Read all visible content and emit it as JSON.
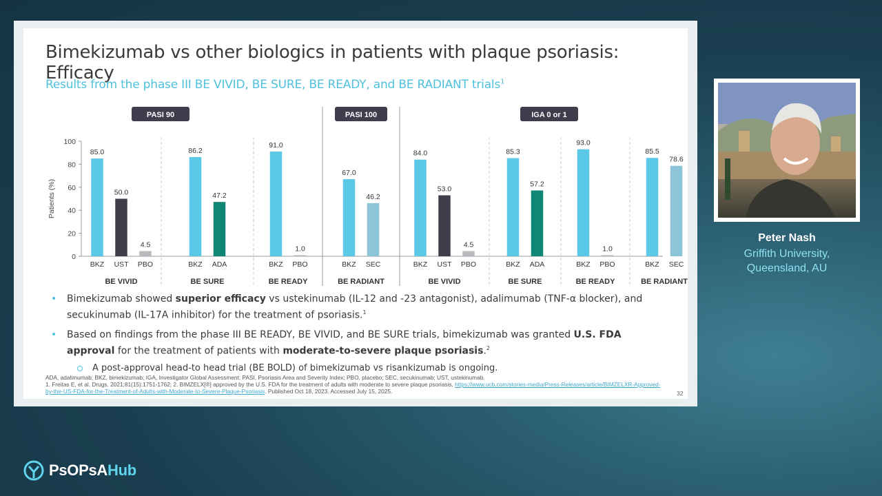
{
  "slide": {
    "title": "Bimekizumab vs other biologics in patients with plaque psoriasis: Efficacy",
    "subtitle": "Results from the phase III BE VIVID, BE SURE, BE READY, and BE RADIANT trials",
    "subtitle_ref": "1",
    "page_number": "32"
  },
  "chart_data": {
    "type": "bar",
    "ylabel": "Patients (%)",
    "ylim": [
      0,
      100
    ],
    "yticks": [
      0,
      20,
      40,
      60,
      80,
      100
    ],
    "colors": {
      "BKZ": "#5bc8e8",
      "UST": "#3e3e4a",
      "PBO": "#b9b9c0",
      "ADA": "#0f8774",
      "SEC": "#8ec4d8"
    },
    "panels": [
      {
        "label": "PASI 90",
        "groups": [
          {
            "label": "BE VIVID",
            "bars": [
              {
                "name": "BKZ",
                "value": 85.0,
                "label": "85.0"
              },
              {
                "name": "UST",
                "value": 50.0,
                "label": "50.0"
              },
              {
                "name": "PBO",
                "value": 4.5,
                "label": "4.5"
              }
            ]
          },
          {
            "label": "BE SURE",
            "bars": [
              {
                "name": "BKZ",
                "value": 86.2,
                "label": "86.2"
              },
              {
                "name": "ADA",
                "value": 47.2,
                "label": "47.2"
              }
            ]
          },
          {
            "label": "BE READY",
            "bars": [
              {
                "name": "BKZ",
                "value": 91.0,
                "label": "91.0"
              },
              {
                "name": "PBO",
                "value": 1.0,
                "label": "1.0"
              }
            ]
          }
        ]
      },
      {
        "label": "PASI 100",
        "groups": [
          {
            "label": "BE RADIANT",
            "bars": [
              {
                "name": "BKZ",
                "value": 67.0,
                "label": "67.0"
              },
              {
                "name": "SEC",
                "value": 46.2,
                "label": "46.2"
              }
            ]
          }
        ]
      },
      {
        "label": "IGA 0 or 1",
        "groups": [
          {
            "label": "BE VIVID",
            "bars": [
              {
                "name": "BKZ",
                "value": 84.0,
                "label": "84.0"
              },
              {
                "name": "UST",
                "value": 53.0,
                "label": "53.0"
              },
              {
                "name": "PBO",
                "value": 4.5,
                "label": "4.5"
              }
            ]
          },
          {
            "label": "BE SURE",
            "bars": [
              {
                "name": "BKZ",
                "value": 85.3,
                "label": "85.3"
              },
              {
                "name": "ADA",
                "value": 57.2,
                "label": "57.2"
              }
            ]
          },
          {
            "label": "BE READY",
            "bars": [
              {
                "name": "BKZ",
                "value": 93.0,
                "label": "93.0"
              },
              {
                "name": "PBO",
                "value": 1.0,
                "label": "1.0"
              }
            ]
          },
          {
            "label": "BE RADIANT",
            "bars": [
              {
                "name": "BKZ",
                "value": 85.5,
                "label": "85.5"
              },
              {
                "name": "SEC",
                "value": 78.6,
                "label": "78.6"
              }
            ]
          }
        ]
      }
    ]
  },
  "bullets": {
    "b1": {
      "p1": "Bimekizumab showed ",
      "bold1": "superior efficacy",
      "p2": " vs ustekinumab (IL-12 and -23 antagonist), adalimumab (TNF-α blocker), and secukinumab (IL-17A inhibitor) for the treatment of psoriasis.",
      "ref": "1"
    },
    "b2": {
      "p1": "Based on findings from the phase III BE READY, BE VIVID, and BE SURE trials, bimekizumab was granted ",
      "bold1": "U.S. FDA approval",
      "p2": " for the treatment of patients with ",
      "bold2": "moderate-to-severe plaque psoriasis",
      "p3": ".",
      "ref": "2"
    },
    "sub": "A post-approval head-to head trial (BE BOLD) of bimekizumab vs risankizumab is ongoing."
  },
  "footnotes": {
    "abbrev": "ADA, adalimumab; BKZ, bimekizumab; IGA, Investigator Global Assessment; PASI, Psoriasis Area and Severity Index; PBO, placebo; SEC, secukinumab; UST, ustekinumab.",
    "ref1": "1. Freitas E, et al. Drugs. 2021;81(15):1751-1762; 2. BIMZELX[®] approved by the U.S. FDA for the treatment of adults with moderate to severe plaque psoriasis. ",
    "link": "https://www.ucb.com/stories-media/Press-Releases/article/BIMZELXR-Approved-by-the-US-FDA-for-the-Treatment-of-Adults-with-Moderate-to-Severe-Plaque-Psoriasis",
    "ref2": ". Published Oct 18, 2023. Accessed July 15, 2025."
  },
  "speaker": {
    "name": "Peter Nash",
    "affiliation_line1": "Griffith University,",
    "affiliation_line2": "Queensland, AU"
  },
  "brand": {
    "name_part1": "PsOPsA",
    "name_part2": "Hub"
  }
}
